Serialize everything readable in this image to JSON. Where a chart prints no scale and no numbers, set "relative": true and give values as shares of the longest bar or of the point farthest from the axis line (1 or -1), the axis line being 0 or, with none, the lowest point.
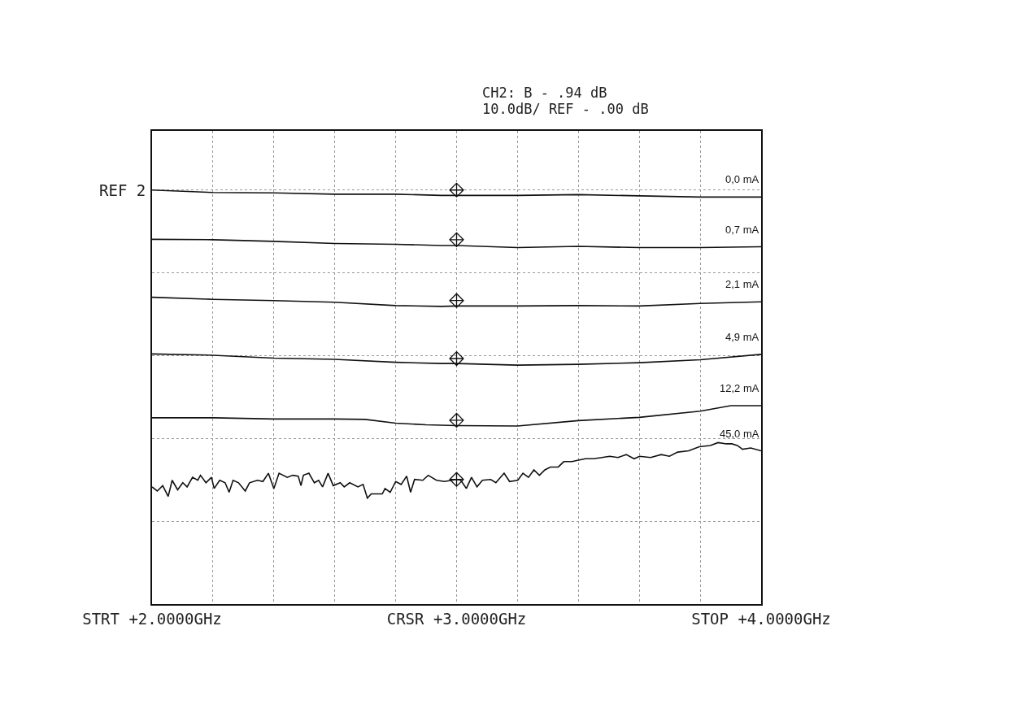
{
  "chart_data": {
    "type": "line",
    "relative": true,
    "annotations": [
      "CH2: B - .94 dB",
      "10.0dB/ REF - .00 dB",
      {
        "text": "REF 2",
        "x": 2,
        "y": 1
      }
    ],
    "xlim": [
      2,
      4
    ],
    "xticks": [
      {
        "value": 2,
        "label": "STRT +2.0000GHz"
      },
      {
        "value": 2.2,
        "label": null
      },
      {
        "value": 2.4,
        "label": null
      },
      {
        "value": 2.6,
        "label": null
      },
      {
        "value": 2.8,
        "label": null
      },
      {
        "value": 3,
        "label": "CRSR +3.0000GHz"
      },
      {
        "value": 3.2,
        "label": null
      },
      {
        "value": 3.4,
        "label": null
      },
      {
        "value": 3.6,
        "label": null
      },
      {
        "value": 3.8,
        "label": null
      },
      {
        "value": 4,
        "label": "STOP +4.0000GHz"
      }
    ],
    "grid": true,
    "legend": false,
    "line_style": "solid",
    "series": [
      {
        "name": "0,0 mA",
        "color": "#111111",
        "x": [
          2,
          2.2,
          2.4,
          2.6,
          2.8,
          2.95,
          3,
          3.2,
          3.4,
          3.6,
          3.8,
          4
        ],
        "values": [
          1,
          0.994,
          0.993,
          0.99,
          0.99,
          0.987,
          0.987,
          0.987,
          0.989,
          0.986,
          0.983,
          0.983
        ]
      },
      {
        "name": "0,7 mA",
        "color": "#111111",
        "x": [
          2,
          2.2,
          2.4,
          2.6,
          2.8,
          2.95,
          3,
          3.2,
          3.4,
          3.6,
          3.8,
          4
        ],
        "values": [
          0.881,
          0.88,
          0.876,
          0.871,
          0.869,
          0.866,
          0.866,
          0.861,
          0.864,
          0.861,
          0.861,
          0.863
        ]
      },
      {
        "name": "2,1 mA",
        "color": "#111111",
        "x": [
          2,
          2.2,
          2.4,
          2.6,
          2.8,
          2.95,
          3,
          3.2,
          3.4,
          3.6,
          3.8,
          4
        ],
        "values": [
          0.741,
          0.736,
          0.733,
          0.729,
          0.721,
          0.719,
          0.72,
          0.72,
          0.721,
          0.72,
          0.726,
          0.73
        ]
      },
      {
        "name": "4,9 mA",
        "color": "#111111",
        "x": [
          2,
          2.2,
          2.4,
          2.6,
          2.8,
          2.95,
          3,
          3.2,
          3.4,
          3.6,
          3.8,
          4
        ],
        "values": [
          0.604,
          0.601,
          0.594,
          0.591,
          0.584,
          0.581,
          0.581,
          0.577,
          0.579,
          0.583,
          0.59,
          0.603
        ]
      },
      {
        "name": "12,2 mA",
        "color": "#111111",
        "x": [
          2,
          2.2,
          2.4,
          2.6,
          2.7,
          2.8,
          2.9,
          3,
          3.2,
          3.4,
          3.6,
          3.8,
          3.9,
          4
        ],
        "values": [
          0.45,
          0.45,
          0.447,
          0.447,
          0.446,
          0.437,
          0.433,
          0.431,
          0.43,
          0.443,
          0.451,
          0.466,
          0.479,
          0.479
        ]
      },
      {
        "name": "45,0 mA",
        "color": "#111111",
        "x": [
          2.0,
          2.017,
          2.035,
          2.053,
          2.066,
          2.084,
          2.101,
          2.115,
          2.133,
          2.15,
          2.159,
          2.177,
          2.195,
          2.204,
          2.222,
          2.24,
          2.253,
          2.266,
          2.284,
          2.306,
          2.32,
          2.346,
          2.364,
          2.382,
          2.4,
          2.417,
          2.444,
          2.462,
          2.48,
          2.489,
          2.497,
          2.515,
          2.533,
          2.547,
          2.56,
          2.578,
          2.595,
          2.618,
          2.631,
          2.649,
          2.676,
          2.693,
          2.707,
          2.72,
          2.756,
          2.765,
          2.782,
          2.8,
          2.818,
          2.836,
          2.849,
          2.862,
          2.889,
          2.907,
          2.934,
          2.96,
          3.0,
          3.014,
          3.032,
          3.049,
          3.067,
          3.085,
          3.112,
          3.129,
          3.156,
          3.174,
          3.201,
          3.218,
          3.236,
          3.254,
          3.272,
          3.29,
          3.308,
          3.334,
          3.352,
          3.379,
          3.397,
          3.423,
          3.45,
          3.477,
          3.503,
          3.53,
          3.557,
          3.583,
          3.601,
          3.637,
          3.672,
          3.699,
          3.726,
          3.762,
          3.797,
          3.833,
          3.859,
          3.886,
          3.904,
          3.922,
          3.939,
          3.966,
          4.0
        ],
        "values": [
          0.283,
          0.273,
          0.286,
          0.26,
          0.299,
          0.276,
          0.293,
          0.283,
          0.306,
          0.299,
          0.311,
          0.293,
          0.306,
          0.279,
          0.299,
          0.293,
          0.27,
          0.299,
          0.293,
          0.273,
          0.293,
          0.299,
          0.296,
          0.316,
          0.279,
          0.316,
          0.306,
          0.311,
          0.309,
          0.286,
          0.311,
          0.316,
          0.293,
          0.299,
          0.283,
          0.316,
          0.286,
          0.293,
          0.283,
          0.293,
          0.283,
          0.289,
          0.256,
          0.266,
          0.266,
          0.279,
          0.27,
          0.296,
          0.289,
          0.309,
          0.27,
          0.301,
          0.299,
          0.311,
          0.299,
          0.296,
          0.301,
          0.299,
          0.279,
          0.306,
          0.283,
          0.299,
          0.301,
          0.293,
          0.316,
          0.296,
          0.299,
          0.316,
          0.306,
          0.324,
          0.311,
          0.324,
          0.331,
          0.331,
          0.344,
          0.344,
          0.347,
          0.351,
          0.351,
          0.354,
          0.357,
          0.354,
          0.361,
          0.351,
          0.357,
          0.354,
          0.361,
          0.357,
          0.367,
          0.37,
          0.38,
          0.383,
          0.39,
          0.387,
          0.387,
          0.383,
          0.374,
          0.377,
          0.37
        ]
      },
      {
        "type": "scatter",
        "marker": "diamond",
        "color": "#111111",
        "x": [
          3,
          3,
          3,
          3,
          3,
          3
        ],
        "values": [
          1,
          0.88,
          0.733,
          0.593,
          0.444,
          0.301
        ]
      }
    ]
  }
}
